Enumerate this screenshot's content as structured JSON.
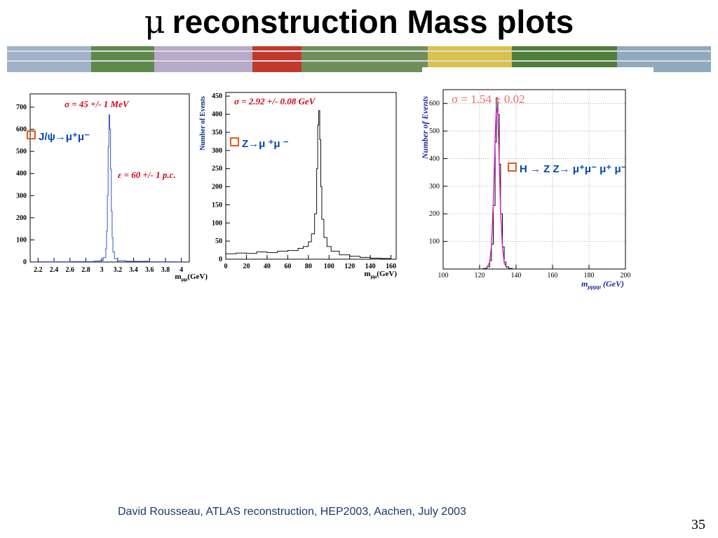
{
  "slide": {
    "title_symbol": "μ",
    "title_text": "reconstruction Mass plots",
    "footer": "David Rousseau, ATLAS reconstruction, HEP2003, Aachen,  July 2003",
    "page_number": "35",
    "banner_icon": "atlas-detector-banner-image"
  },
  "chart_data": [
    {
      "type": "line",
      "process_label": "J/ψ→μ⁺μ⁻",
      "annotations": [
        "σ =  45 +/- 1 MeV",
        "ε =  60 +/- 1 p.c."
      ],
      "xlabel": "m_μμ(GeV)",
      "ylabel": "",
      "xlim": [
        2.1,
        4.1
      ],
      "ylim": [
        0,
        760
      ],
      "xticks": [
        "2.2",
        "2.4",
        "2.6",
        "2.8",
        "3",
        "3.2",
        "3.4",
        "3.6",
        "3.8",
        "4"
      ],
      "yticks": [
        "0",
        "100",
        "200",
        "300",
        "400",
        "500",
        "600",
        "700"
      ],
      "grid": false,
      "color": "#3355cc",
      "series": [
        {
          "x": [
            2.2,
            2.6,
            2.9,
            2.98,
            3.02,
            3.05,
            3.06,
            3.07,
            3.08,
            3.09,
            3.1,
            3.11,
            3.12,
            3.13,
            3.14,
            3.16,
            3.2,
            3.3,
            3.6,
            4.0
          ],
          "y": [
            1,
            2,
            4,
            8,
            20,
            60,
            140,
            300,
            520,
            665,
            600,
            420,
            230,
            110,
            45,
            15,
            6,
            3,
            1,
            0
          ]
        }
      ]
    },
    {
      "type": "line",
      "process_label": "Z→μ ⁺μ ⁻",
      "annotations": [
        "σ =  2.92 +/- 0.08 GeV"
      ],
      "xlabel": "m_μμ(GeV)",
      "ylabel": "Number of Events",
      "xlim": [
        0,
        165
      ],
      "ylim": [
        0,
        460
      ],
      "xticks": [
        "0",
        "20",
        "40",
        "60",
        "80",
        "100",
        "120",
        "140",
        "160"
      ],
      "yticks": [
        "0",
        "50",
        "100",
        "150",
        "200",
        "250",
        "300",
        "350",
        "400",
        "450"
      ],
      "grid": false,
      "color": "#111111",
      "series": [
        {
          "x": [
            0,
            10,
            20,
            30,
            40,
            50,
            60,
            70,
            75,
            80,
            83,
            86,
            88,
            89,
            90,
            91,
            92,
            93,
            95,
            98,
            102,
            110,
            120,
            130,
            140,
            150,
            160
          ],
          "y": [
            15,
            17,
            16,
            20,
            18,
            22,
            24,
            30,
            35,
            48,
            70,
            125,
            250,
            370,
            410,
            330,
            200,
            110,
            60,
            35,
            22,
            12,
            8,
            5,
            3,
            2,
            2
          ]
        }
      ]
    },
    {
      "type": "line",
      "process_label": "H → Z Z→ μ⁺μ⁻ μ⁺ μ⁻",
      "annotations": [
        "σ = 1.54 ± 0.02"
      ],
      "xlabel": "m_μμμμ (GeV)",
      "ylabel": "Number of Events",
      "xlim": [
        100,
        200
      ],
      "ylim": [
        0,
        650
      ],
      "xticks": [
        "100",
        "120",
        "140",
        "160",
        "180",
        "200"
      ],
      "yticks": [
        "100",
        "200",
        "300",
        "400",
        "500",
        "600"
      ],
      "grid": true,
      "color": "#000000",
      "fit_color": "#e020d0",
      "series": [
        {
          "name": "",
          "x": [
            118,
            122,
            124,
            125.5,
            126.5,
            127.5,
            128.5,
            129.2,
            130,
            130.8,
            131.5,
            132.5,
            133.5,
            134.5,
            136,
            138
          ],
          "y": [
            0,
            2,
            8,
            30,
            90,
            230,
            460,
            620,
            560,
            380,
            200,
            80,
            25,
            8,
            2,
            0
          ]
        }
      ],
      "fit": {
        "x": [
          124,
          125.5,
          126.5,
          127.5,
          128.5,
          129.2,
          130,
          130.8,
          131.5,
          132.5,
          133.5,
          135
        ],
        "y": [
          5,
          25,
          85,
          240,
          470,
          590,
          560,
          380,
          210,
          80,
          22,
          3
        ]
      }
    }
  ]
}
